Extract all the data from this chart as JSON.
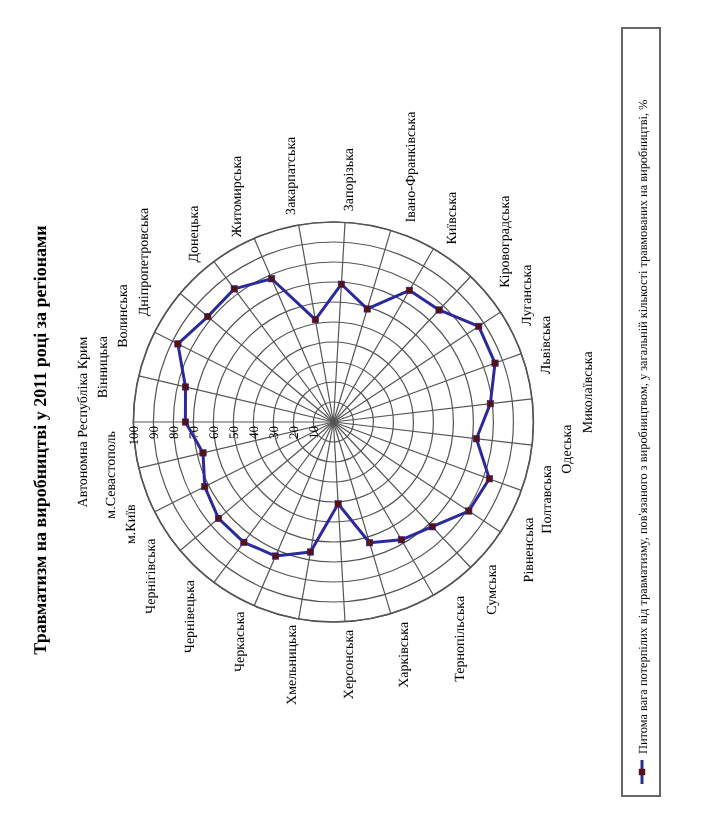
{
  "chart_data": {
    "type": "radar",
    "title": "Травматизм на виробництві у 2011 році за регіонами",
    "categories": [
      "Автономна Республіка Крим",
      "Вінницька",
      "Волинська",
      "Дніпропетровська",
      "Донецька",
      "Житомирська",
      "Закарпатська",
      "Запорізька",
      "Івано-Франківська",
      "Київська",
      "Кіровоградська",
      "Луганська",
      "Львівська",
      "Миколаївська",
      "Одеська",
      "Полтавська",
      "Рівненська",
      "Сумська",
      "Тернопільська",
      "Харківська",
      "Херсонська",
      "Хмельницька",
      "Черкаська",
      "Чернівецька",
      "Чернігівська",
      "м.Київ",
      "м.Севастополь"
    ],
    "series": [
      {
        "name": "Питома вага потерпілих від травматизму, пов'язаного з виробництвом, у загальній кількості травмованих на виробництві, %",
        "color": "#2a2a9c",
        "values": [
          74,
          76,
          87,
          82,
          83,
          78,
          52,
          69,
          59,
          76,
          77,
          87,
          86,
          79,
          72,
          83,
          81,
          72,
          68,
          63,
          41,
          66,
          73,
          75,
          75,
          72,
          67
        ]
      }
    ],
    "ylim": [
      0,
      100
    ],
    "yticks": [
      10,
      20,
      30,
      40,
      50,
      60,
      70,
      80,
      90,
      100
    ],
    "grid": true,
    "legend": "bottom",
    "marker": "square"
  }
}
